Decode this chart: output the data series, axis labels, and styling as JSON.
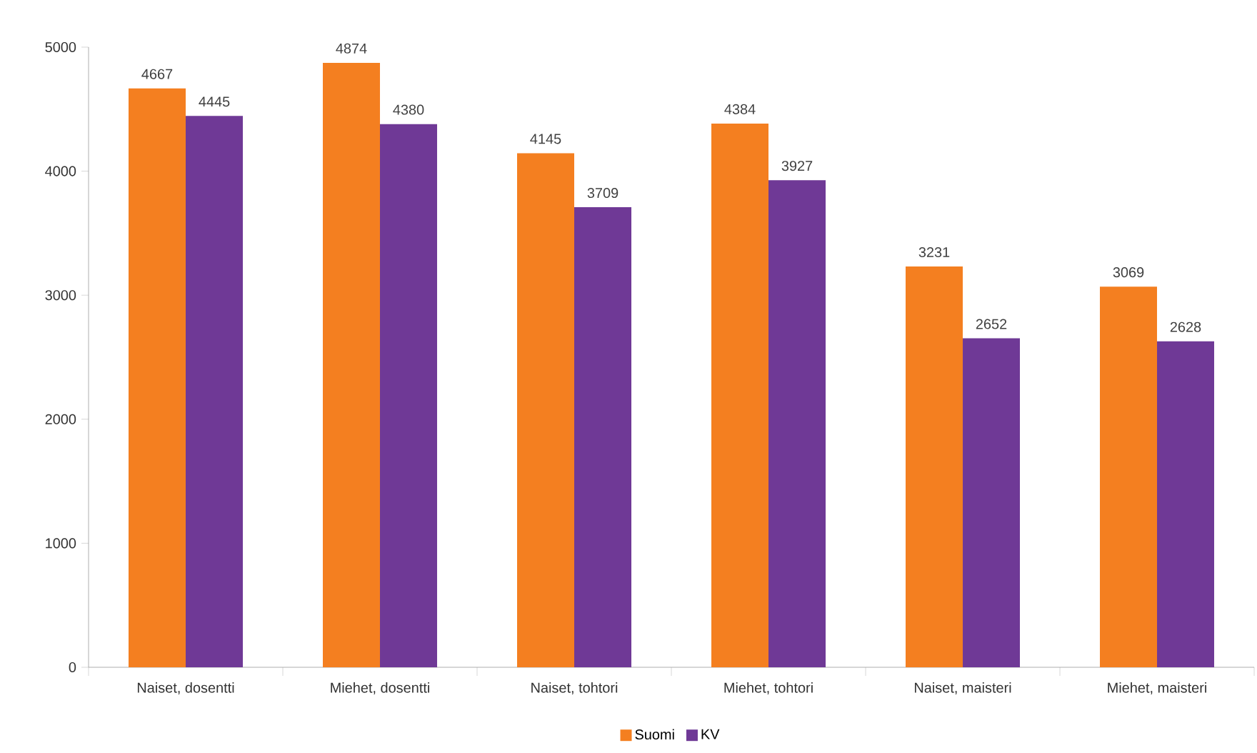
{
  "chart_data": {
    "type": "bar",
    "categories": [
      "Naiset, dosentti",
      "Miehet, dosentti",
      "Naiset, tohtori",
      "Miehet, tohtori",
      "Naiset, maisteri",
      "Miehet, maisteri"
    ],
    "series": [
      {
        "name": "Suomi",
        "color": "#f47f20",
        "values": [
          4667,
          4874,
          4145,
          4384,
          3231,
          3069
        ]
      },
      {
        "name": "KV",
        "color": "#6f3996",
        "values": [
          4445,
          4380,
          3709,
          3927,
          2652,
          2628
        ]
      }
    ],
    "ylim": [
      0,
      5000
    ],
    "yticks": [
      0,
      1000,
      2000,
      3000,
      4000,
      5000
    ],
    "grid": false,
    "legend": "bottom",
    "data_labels": true
  }
}
